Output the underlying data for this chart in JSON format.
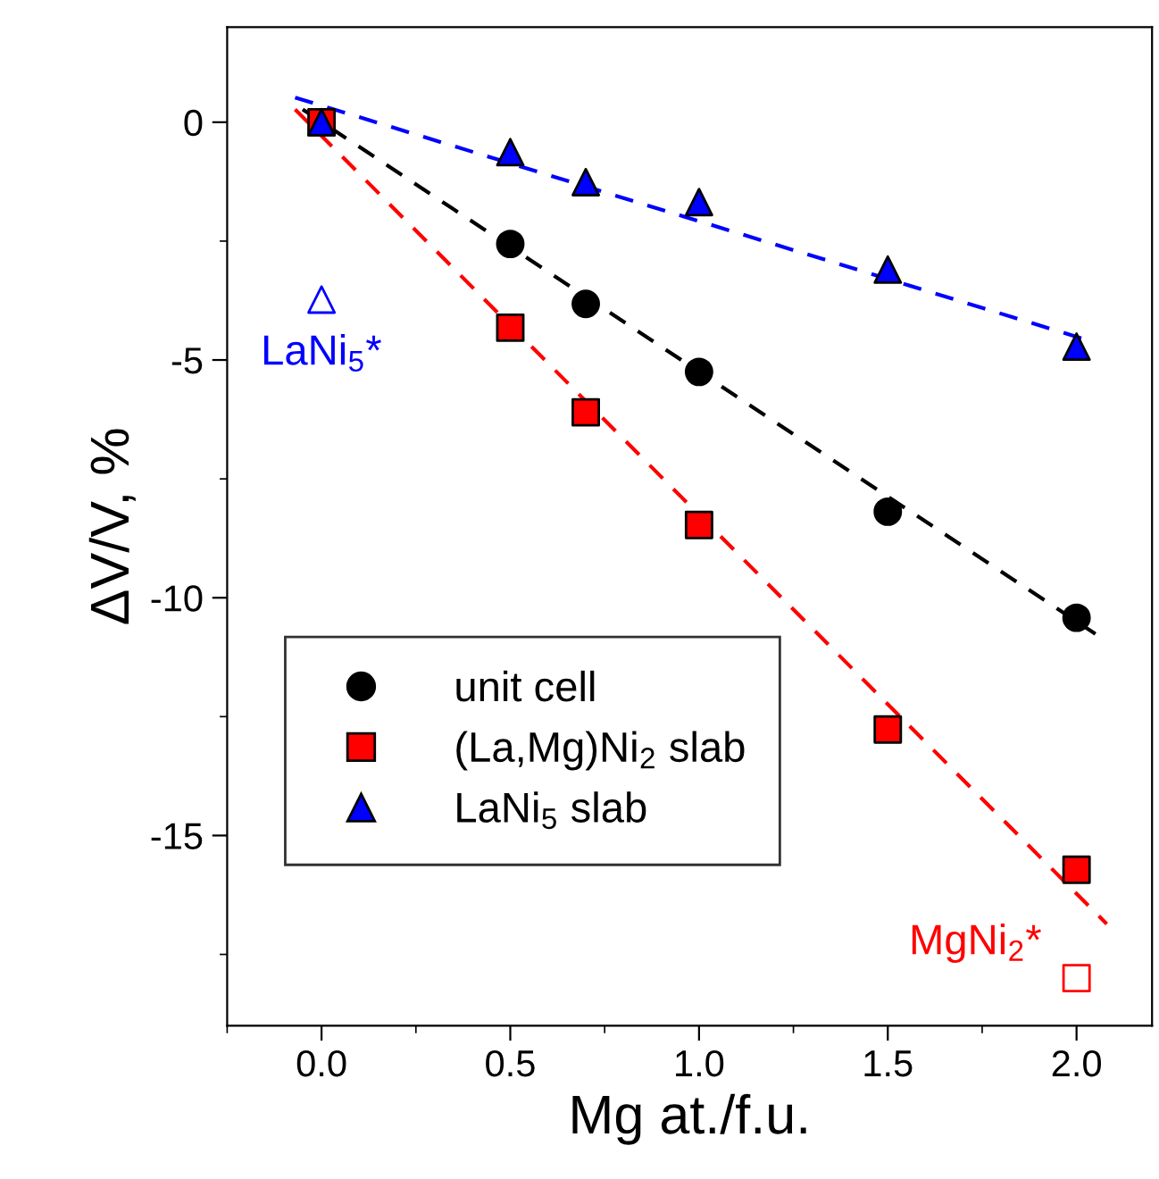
{
  "chart_data": {
    "type": "scatter",
    "xlabel": "Mg at./f.u.",
    "ylabel": "ΔV/V, %",
    "xlim": [
      -0.25,
      2.2
    ],
    "xticks": [
      {
        "value": 0,
        "label": "0.0"
      },
      0.5,
      {
        "value": 1,
        "label": "1.0"
      },
      1.5,
      {
        "value": 2,
        "label": "2.0"
      }
    ],
    "ylim": [
      -19,
      2
    ],
    "yticks": [
      -15,
      -10,
      -5,
      0
    ],
    "grid": false,
    "legend": "bottom left",
    "series": [
      {
        "name": "unit cell",
        "color": "#000000",
        "marker": "circle",
        "x": [
          0.5,
          0.7,
          1.0,
          1.5,
          2.0
        ],
        "values": [
          -2.56,
          -3.82,
          -5.25,
          -8.19,
          -10.42
        ]
      },
      {
        "name": "(La,Mg)Ni$_{2}$ slab",
        "color": "#ff0000",
        "marker": "square",
        "x": [
          0,
          0.5,
          0.7,
          1.0,
          1.5,
          2.0
        ],
        "values": [
          0,
          -4.32,
          -6.1,
          -8.47,
          -12.77,
          -15.72
        ]
      },
      {
        "name": "LaNi$_{5}$ slab",
        "color": "#0000ff",
        "marker": "triangle",
        "x": [
          0,
          0.5,
          0.7,
          1.0,
          1.5,
          2.0
        ],
        "values": [
          0,
          -0.63,
          -1.26,
          -1.68,
          -3.1,
          -4.72
        ]
      },
      {
        "type": "line",
        "color": "#000000",
        "line_style": "dashed",
        "x": [
          -0.05,
          2.05
        ],
        "values": [
          0.27,
          -10.76
        ]
      },
      {
        "type": "line",
        "color": "#ff0000",
        "line_style": "dashed",
        "x": [
          -0.07,
          2.08
        ],
        "values": [
          0.27,
          -16.86
        ]
      },
      {
        "type": "line",
        "color": "#0000ff",
        "line_style": "dashed",
        "x": [
          -0.07,
          2.02
        ],
        "values": [
          0.52,
          -4.56
        ]
      },
      {
        "color": "#0000ff",
        "marker": "triangle",
        "x": [
          0
        ],
        "values": [
          -3.73
        ]
      },
      {
        "color": "#ff0000",
        "marker": "square",
        "x": [
          2.0
        ],
        "values": [
          -18.0
        ]
      }
    ],
    "annotations": [
      {
        "text": "LaNi$_{5}$*",
        "x": 0,
        "y": -3.73
      },
      {
        "text": "MgNi$_{2}$*",
        "x": 2.0,
        "y": -18.0
      }
    ]
  }
}
